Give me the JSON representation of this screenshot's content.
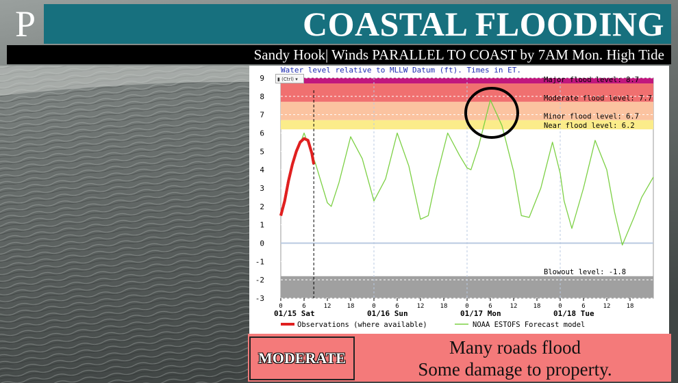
{
  "banner": {
    "logo_letter": "P",
    "title": "COASTAL FLOODING",
    "subtitle": "Sandy Hook| Winds PARALLEL TO COAST by 7AM Mon. High Tide"
  },
  "chart_data": {
    "type": "line",
    "title": "Water level relative to MLLW Datum (ft). Times in ET.",
    "ylim": [
      -3,
      9
    ],
    "yticks": [
      9,
      8,
      7,
      6,
      5,
      4,
      3,
      2,
      1,
      0,
      -1,
      -2,
      -3
    ],
    "xlim": [
      0,
      96
    ],
    "xticks": [
      {
        "x": 0,
        "label": "0"
      },
      {
        "x": 6,
        "label": "6"
      },
      {
        "x": 12,
        "label": "12"
      },
      {
        "x": 18,
        "label": "18"
      },
      {
        "x": 24,
        "label": "0"
      },
      {
        "x": 30,
        "label": "6"
      },
      {
        "x": 36,
        "label": "12"
      },
      {
        "x": 42,
        "label": "18"
      },
      {
        "x": 48,
        "label": "0"
      },
      {
        "x": 54,
        "label": "6"
      },
      {
        "x": 60,
        "label": "12"
      },
      {
        "x": 66,
        "label": "18"
      },
      {
        "x": 72,
        "label": "0"
      },
      {
        "x": 78,
        "label": "6"
      },
      {
        "x": 84,
        "label": "12"
      },
      {
        "x": 90,
        "label": "18"
      }
    ],
    "day_labels": [
      {
        "x": 0,
        "label": "01/15 Sat"
      },
      {
        "x": 24,
        "label": "01/16 Sun"
      },
      {
        "x": 48,
        "label": "01/17 Mon"
      },
      {
        "x": 72,
        "label": "01/18 Tue"
      }
    ],
    "now_marker_x": 8.5,
    "thresholds": [
      {
        "name": "Major flood level",
        "label": "Major flood level: 8.7",
        "value": 8.7,
        "band": [
          8.7,
          9.0
        ],
        "color": "#c0177e"
      },
      {
        "name": "Moderate flood level",
        "label": "Moderate flood level: 7.7",
        "value": 7.7,
        "band": [
          7.7,
          8.7
        ],
        "color": "#f07070"
      },
      {
        "name": "Minor flood level",
        "label": "Minor flood level: 6.7",
        "value": 6.7,
        "band": [
          6.7,
          7.7
        ],
        "color": "#fbc3a0"
      },
      {
        "name": "Near flood level",
        "label": "Near flood level: 6.2",
        "value": 6.2,
        "band": [
          6.2,
          6.7
        ],
        "color": "#fbec8a"
      },
      {
        "name": "Blowout level",
        "label": "Blowout level: -1.8",
        "value": -1.8,
        "band": [
          -3.0,
          -1.8
        ],
        "color": "#a0a0a0"
      }
    ],
    "series": [
      {
        "name": "Observations (where available)",
        "color": "#e02020",
        "x": [
          0,
          1,
          2,
          3,
          4,
          5,
          6,
          7,
          8,
          8.5
        ],
        "y": [
          1.5,
          2.3,
          3.4,
          4.3,
          5.0,
          5.5,
          5.7,
          5.6,
          4.9,
          4.3
        ]
      },
      {
        "name": "NOAA ESTOFS Forecast model",
        "color": "#7cd044",
        "x": [
          0,
          3,
          6,
          9,
          12,
          13,
          15,
          18,
          21,
          24,
          27,
          30,
          33,
          36,
          38,
          40,
          43,
          46,
          48,
          49,
          51,
          54,
          57,
          60,
          62,
          64,
          67,
          70,
          72,
          73,
          75,
          78,
          81,
          84,
          86,
          88,
          91,
          93,
          96
        ],
        "y": [
          1.6,
          4.3,
          6.0,
          4.3,
          2.2,
          2.0,
          3.3,
          5.8,
          4.6,
          2.3,
          3.5,
          6.0,
          4.2,
          1.3,
          1.5,
          3.5,
          6.0,
          4.8,
          4.1,
          4.0,
          5.3,
          7.8,
          6.4,
          3.9,
          1.5,
          1.4,
          3.0,
          5.5,
          3.8,
          2.3,
          0.8,
          3.0,
          5.6,
          4.0,
          1.7,
          -0.1,
          1.4,
          2.5,
          3.6
        ]
      }
    ],
    "annotation": "circle around Monday morning high tide peak (~7.8 ft)"
  },
  "paste_tag": "(Ctrl)",
  "footer": {
    "severity": "MODERATE",
    "impact_line1": "Many roads flood",
    "impact_line2": "Some damage to property."
  }
}
